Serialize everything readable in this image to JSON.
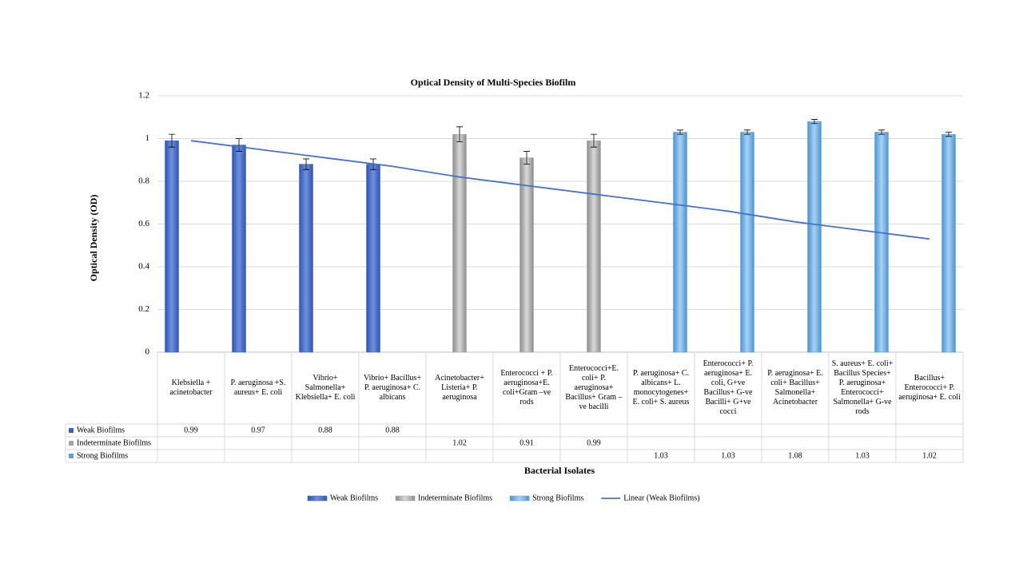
{
  "chart_data": {
    "type": "bar",
    "title": "Optical  Density of Multi-Species  Biofilm",
    "ylabel": "Optical  Density (OD)",
    "xlabel": "Bacterial Isolates",
    "categories": [
      "Klebsiella + acinetobacter",
      "P. aeruginosa +S. aureus+ E. coli",
      "Vibrio+ Salmonella+ Klebsiella+ E. coli",
      "Vibrio+ Bacillus+ P. aeruginosa+ C. albicans",
      "Acinetobacter+ Listeria+ P. aeruginosa",
      "Enterococci + P. aeruginosa+E. coli+Gram –ve rods",
      "Enterococci+E. coli+ P. aeruginosa+ Bacillus+ Gram –ve bacilli",
      "P. aeruginosa+ C. albicans+ L. monocytogenes+ E. coli+ S. aureus",
      "Enterococci+ P. aeruginosa+ E. coli, G+ve Bacillus+ G-ve Bacilli+ G+ve cocci",
      "P. aeruginosa+ E. coli+ Bacillus+ Salmonella+ Acinetobacter",
      "S. aureus+ E. coli+ Bacillus Species+ P. aeruginosa+ Enterococci+ Salmonella+ G-ve rods",
      "Bacillus+ Enterococci+ P. aeruginosa+ E. coli"
    ],
    "series": [
      {
        "name": "Weak Biofilms",
        "color": "#3a62c4",
        "values": [
          0.99,
          0.97,
          0.88,
          0.88,
          null,
          null,
          null,
          null,
          null,
          null,
          null,
          null
        ],
        "errors": [
          0.03,
          0.03,
          0.025,
          0.025,
          null,
          null,
          null,
          null,
          null,
          null,
          null,
          null
        ]
      },
      {
        "name": "Indeterminate Biofilms",
        "color": "#a6a6a6",
        "values": [
          null,
          null,
          null,
          null,
          1.02,
          0.91,
          0.99,
          null,
          null,
          null,
          null,
          null
        ],
        "errors": [
          null,
          null,
          null,
          null,
          0.035,
          0.03,
          0.03,
          null,
          null,
          null,
          null,
          null
        ]
      },
      {
        "name": "Strong Biofilms",
        "color": "#5ba3e0",
        "values": [
          null,
          null,
          null,
          null,
          null,
          null,
          null,
          1.03,
          1.03,
          1.08,
          1.03,
          1.02
        ],
        "errors": [
          null,
          null,
          null,
          null,
          null,
          null,
          null,
          0.01,
          0.01,
          0.01,
          0.01,
          0.01
        ]
      },
      {
        "name": "Linear (Weak Biofilms)",
        "type": "line",
        "color": "#4472c4",
        "values": [
          0.99,
          0.95,
          0.91,
          0.87,
          0.82,
          0.78,
          0.74,
          0.7,
          0.66,
          0.61,
          0.57,
          0.53
        ]
      }
    ],
    "ylim": [
      0,
      1.2
    ],
    "yticks": [
      0,
      0.2,
      0.4,
      0.6,
      0.8,
      1,
      1.2
    ],
    "grid": true,
    "legend": "bottom",
    "data_table": true
  }
}
